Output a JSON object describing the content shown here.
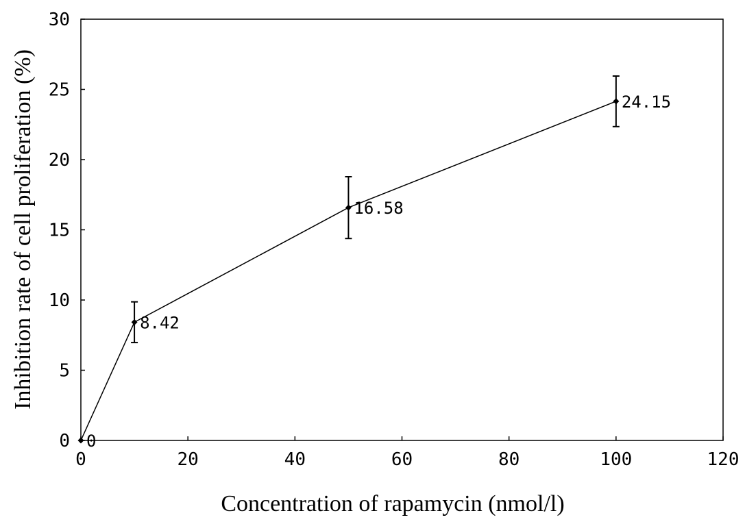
{
  "chart_data": {
    "type": "line",
    "title": "",
    "xlabel": "Concentration of rapamycin (nmol/l)",
    "ylabel": "Inhibition rate of cell proliferation (%)",
    "xlim": [
      0,
      120
    ],
    "ylim": [
      0,
      30
    ],
    "xticks": [
      0,
      20,
      40,
      60,
      80,
      100,
      120
    ],
    "yticks": [
      0,
      5,
      10,
      15,
      20,
      25,
      30
    ],
    "grid": false,
    "legend": "none",
    "series": [
      {
        "x": [
          0,
          10,
          50,
          100
        ],
        "y": [
          0,
          8.42,
          16.58,
          24.15
        ],
        "error": [
          0,
          1.45,
          2.2,
          1.8
        ],
        "labels": [
          "0",
          "8.42",
          "16.58",
          "24.15"
        ],
        "color": "#000000",
        "marker": "diamond"
      }
    ]
  }
}
